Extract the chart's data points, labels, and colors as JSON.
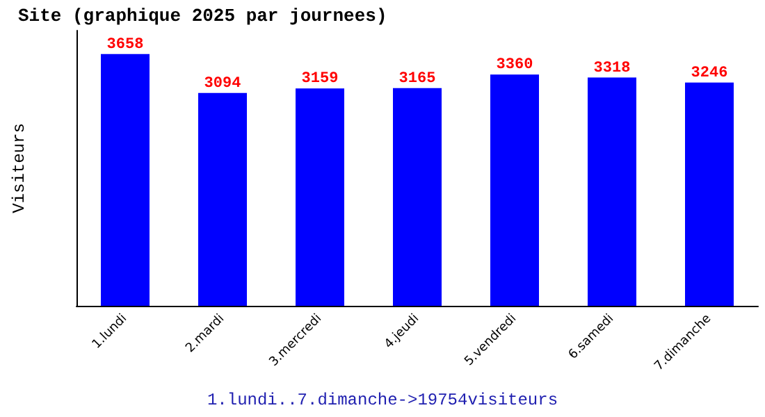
{
  "chart_data": {
    "type": "bar",
    "title": "Site (graphique 2025 par journees)",
    "ylabel": "Visiteurs",
    "categories": [
      "1.lundi",
      "2.mardi",
      "3.mercredi",
      "4.jeudi",
      "5.vendredi",
      "6.samedi",
      "7.dimanche"
    ],
    "values": [
      3658,
      3094,
      3159,
      3165,
      3360,
      3318,
      3246
    ],
    "color": "#0000ff",
    "data_labels": true,
    "tick_labels": "x",
    "annotations": [
      "1.lundi..7.dimanche->19754visiteurs"
    ]
  }
}
